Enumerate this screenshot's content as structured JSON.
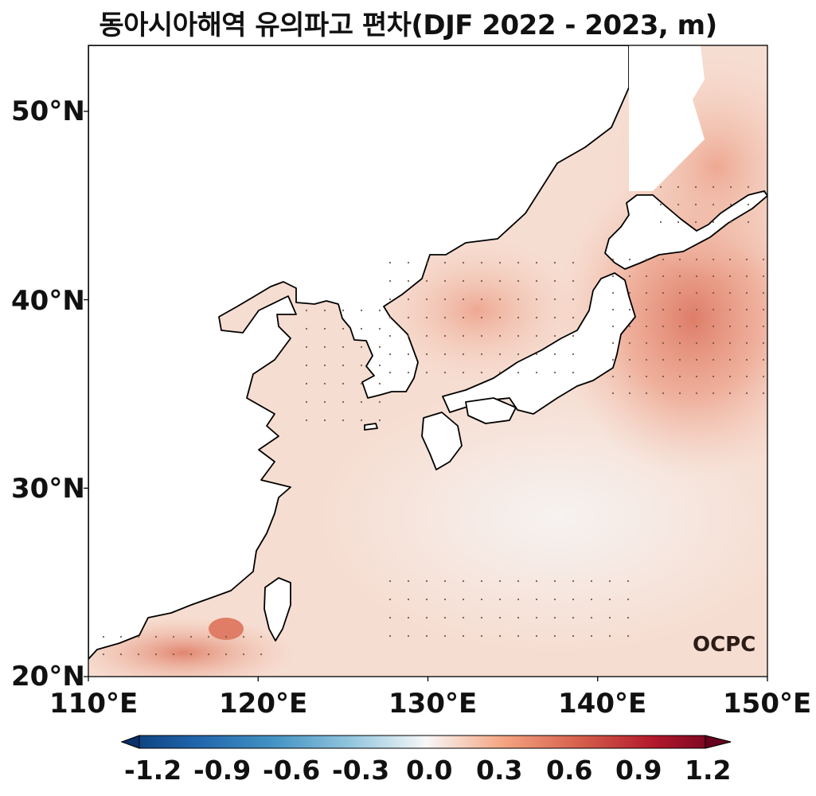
{
  "title": "동아시아해역 유의파고 편차(DJF 2022 - 2023, m)",
  "map": {
    "lon_range": [
      110,
      150
    ],
    "lat_range": [
      20,
      53.5
    ],
    "x_ticks": [
      {
        "value": 110,
        "label": "110°E"
      },
      {
        "value": 120,
        "label": "120°E"
      },
      {
        "value": 130,
        "label": "130°E"
      },
      {
        "value": 140,
        "label": "140°E"
      },
      {
        "value": 150,
        "label": "150°E"
      }
    ],
    "y_ticks": [
      {
        "value": 20,
        "label": "20°N"
      },
      {
        "value": 30,
        "label": "30°N"
      },
      {
        "value": 40,
        "label": "40°N"
      },
      {
        "value": 50,
        "label": "50°N"
      }
    ],
    "land_color": "#ffffff",
    "coast_color": "#000000",
    "significance_marker": "dot"
  },
  "colorbar": {
    "colormap": "RdBu_r",
    "min": -1.2,
    "max": 1.2,
    "extend": "both",
    "ticks": [
      "-1.2",
      "-0.9",
      "-0.6",
      "-0.3",
      "0.0",
      "0.3",
      "0.6",
      "0.9",
      "1.2"
    ]
  },
  "logo": "OCPC",
  "colors": {
    "neg_strong": "#08306b",
    "neg_mid": "#4393c3",
    "neutral": "#f7f7f7",
    "pos_mid": "#e8957a",
    "pos_strong": "#67001f"
  }
}
